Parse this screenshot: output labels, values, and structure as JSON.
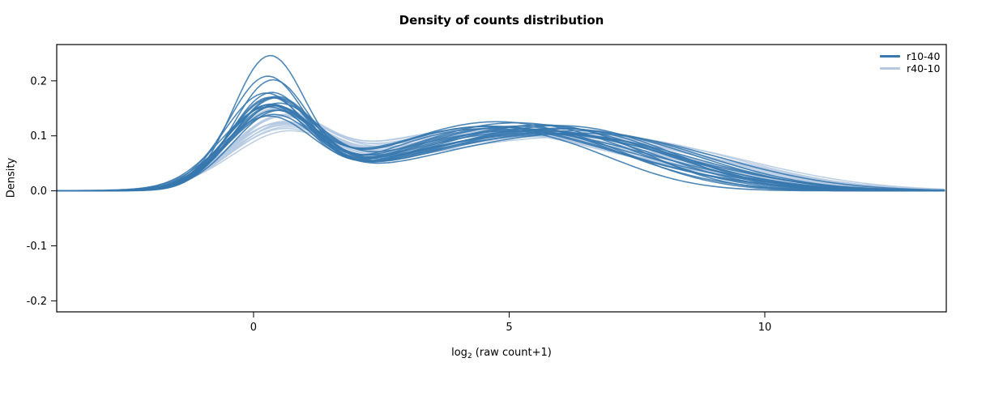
{
  "chart_data": {
    "type": "line",
    "subtype": "density",
    "title": "Density of counts distribution",
    "ylabel": "Density",
    "xlabel": {
      "prefix": "log",
      "sub": "2",
      "suffix": " (raw count+1)"
    },
    "xlim": [
      -3.85,
      13.55
    ],
    "ylim": [
      -0.22,
      0.266
    ],
    "xticks": [
      {
        "v": 0,
        "label": "0"
      },
      {
        "v": 5,
        "label": "5"
      },
      {
        "v": 10,
        "label": "10"
      }
    ],
    "yticks": [
      {
        "v": 0.2,
        "label": "0.2"
      },
      {
        "v": 0.1,
        "label": "0.1"
      },
      {
        "v": 0.0,
        "label": "0.0"
      },
      {
        "v": -0.1,
        "label": "-0.1"
      },
      {
        "v": -0.2,
        "label": "-0.2"
      }
    ],
    "grid": false,
    "legend_position": "top-right",
    "curve_model": "each curve is a gaussian mixture given as flat [w,mu,sigma] triplets; y = density",
    "series": [
      {
        "name": "r10-40",
        "color": "#3778ae",
        "curves": [
          [
            0.42,
            0.3,
            0.71,
            0.33,
            3.6,
            1.6,
            0.25,
            5.9,
            1.5
          ],
          [
            0.38,
            0.25,
            0.76,
            0.35,
            4.0,
            1.8,
            0.27,
            6.2,
            1.6
          ],
          [
            0.36,
            0.35,
            0.75,
            0.4,
            4.4,
            2.0,
            0.24,
            6.5,
            1.5
          ],
          [
            0.33,
            0.2,
            0.8,
            0.42,
            4.2,
            2.1,
            0.25,
            6.8,
            1.7
          ],
          [
            0.32,
            0.4,
            0.82,
            0.45,
            4.6,
            2.2,
            0.23,
            7.0,
            1.6
          ],
          [
            0.31,
            0.28,
            0.85,
            0.44,
            4.3,
            2.0,
            0.25,
            6.4,
            1.8
          ],
          [
            0.3,
            0.33,
            0.84,
            0.46,
            4.8,
            2.3,
            0.24,
            6.9,
            1.7
          ],
          [
            0.3,
            0.22,
            0.88,
            0.48,
            4.5,
            2.4,
            0.22,
            7.2,
            1.8
          ],
          [
            0.29,
            0.45,
            0.86,
            0.47,
            5.0,
            2.3,
            0.24,
            7.4,
            1.9
          ],
          [
            0.31,
            0.38,
            0.8,
            0.45,
            4.1,
            2.0,
            0.24,
            6.0,
            1.9
          ],
          [
            0.3,
            0.26,
            0.82,
            0.43,
            4.7,
            2.2,
            0.27,
            6.6,
            2.0
          ],
          [
            0.32,
            0.31,
            0.83,
            0.4,
            3.9,
            1.9,
            0.28,
            6.3,
            2.1
          ],
          [
            0.29,
            0.36,
            0.87,
            0.44,
            4.4,
            2.1,
            0.27,
            7.1,
            2.0
          ],
          [
            0.28,
            0.24,
            0.9,
            0.46,
            4.9,
            2.4,
            0.26,
            7.5,
            1.9
          ],
          [
            0.3,
            0.42,
            0.85,
            0.42,
            4.2,
            2.2,
            0.28,
            6.7,
            2.2
          ],
          [
            0.31,
            0.29,
            0.79,
            0.41,
            4.5,
            2.3,
            0.28,
            7.3,
            2.0
          ],
          [
            0.28,
            0.34,
            0.88,
            0.45,
            5.1,
            2.5,
            0.27,
            7.7,
            2.1
          ],
          [
            0.29,
            0.27,
            0.84,
            0.43,
            4.0,
            2.1,
            0.28,
            6.1,
            2.3
          ],
          [
            0.33,
            0.32,
            0.78,
            0.39,
            4.3,
            1.9,
            0.28,
            6.6,
            2.2
          ],
          [
            0.3,
            0.37,
            0.86,
            0.44,
            4.7,
            2.4,
            0.26,
            7.0,
            2.3
          ]
        ]
      },
      {
        "name": "r40-10",
        "color": "#b5c9e2",
        "curves": [
          [
            0.26,
            0.45,
            0.95,
            0.45,
            3.8,
            2.2,
            0.29,
            6.8,
            2.0
          ],
          [
            0.24,
            0.5,
            0.98,
            0.47,
            4.2,
            2.3,
            0.29,
            7.2,
            2.1
          ],
          [
            0.27,
            0.4,
            0.9,
            0.44,
            3.6,
            2.1,
            0.29,
            6.5,
            2.2
          ],
          [
            0.25,
            0.55,
            0.96,
            0.46,
            4.5,
            2.4,
            0.29,
            7.5,
            2.0
          ],
          [
            0.28,
            0.35,
            0.88,
            0.43,
            3.9,
            2.2,
            0.29,
            6.9,
            2.3
          ],
          [
            0.24,
            0.48,
            1.0,
            0.48,
            4.4,
            2.5,
            0.28,
            7.8,
            2.1
          ],
          [
            0.26,
            0.52,
            0.92,
            0.45,
            4.0,
            2.3,
            0.29,
            7.0,
            2.2
          ],
          [
            0.25,
            0.43,
            0.94,
            0.47,
            4.6,
            2.4,
            0.28,
            7.6,
            2.2
          ],
          [
            0.27,
            0.38,
            0.89,
            0.44,
            3.7,
            2.2,
            0.29,
            6.6,
            2.4
          ],
          [
            0.23,
            0.57,
            1.02,
            0.48,
            4.8,
            2.5,
            0.29,
            8.0,
            2.1
          ],
          [
            0.26,
            0.46,
            0.93,
            0.46,
            4.1,
            2.3,
            0.28,
            7.3,
            2.3
          ],
          [
            0.25,
            0.41,
            0.97,
            0.45,
            4.4,
            2.4,
            0.3,
            7.1,
            2.4
          ],
          [
            0.28,
            0.36,
            0.87,
            0.42,
            3.8,
            2.1,
            0.3,
            6.7,
            2.3
          ],
          [
            0.24,
            0.53,
            0.99,
            0.47,
            4.7,
            2.5,
            0.29,
            7.9,
            2.2
          ],
          [
            0.26,
            0.44,
            0.91,
            0.44,
            4.0,
            2.2,
            0.3,
            7.2,
            2.4
          ],
          [
            0.25,
            0.49,
            0.95,
            0.46,
            4.5,
            2.5,
            0.29,
            7.7,
            2.3
          ],
          [
            0.27,
            0.39,
            0.9,
            0.43,
            3.7,
            2.1,
            0.3,
            6.4,
            2.5
          ],
          [
            0.24,
            0.51,
            1.01,
            0.48,
            4.9,
            2.6,
            0.28,
            8.2,
            2.2
          ],
          [
            0.26,
            0.47,
            0.92,
            0.45,
            4.2,
            2.3,
            0.29,
            7.4,
            2.4
          ],
          [
            0.25,
            0.42,
            0.96,
            0.46,
            4.6,
            2.5,
            0.29,
            7.8,
            2.3
          ]
        ]
      }
    ]
  }
}
